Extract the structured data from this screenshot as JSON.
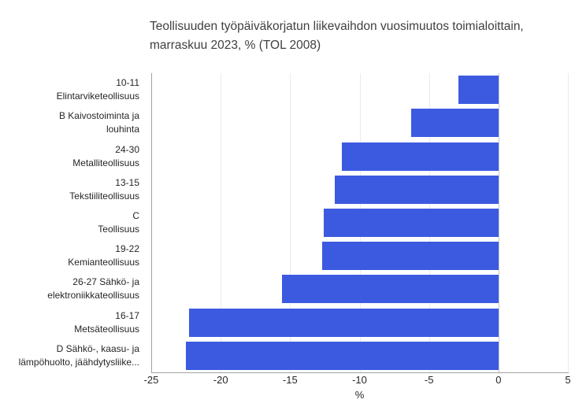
{
  "title": {
    "lines": [
      "Teollisuuden työpäiväkorjatun liikevaihdon vuosimuutos toimialoittain,",
      "marraskuu 2023, % (TOL 2008)"
    ]
  },
  "chart_data": {
    "type": "bar",
    "orientation": "horizontal",
    "title": "Teollisuuden työpäiväkorjatun liikevaihdon vuosimuutos toimialoittain, marraskuu 2023, % (TOL 2008)",
    "categories": [
      "10-11\nElintarviketeollisuus",
      "B Kaivostoiminta ja\nlouhinta",
      "24-30\nMetalliteollisuus",
      "13-15\nTekstiiliteollisuus",
      "C\nTeollisuus",
      "19-22\nKemianteollisuus",
      "26-27 Sähkö- ja\nelektroniikkateollisuus",
      "16-17\nMetsäteollisuus",
      "D Sähkö-, kaasu- ja\nlämpöhuolto, jäähdytysliike..."
    ],
    "values": [
      -2.9,
      -6.3,
      -11.3,
      -11.8,
      -12.6,
      -12.7,
      -15.6,
      -22.3,
      -22.5
    ],
    "xlabel": "%",
    "xlim": [
      -25,
      5
    ],
    "xticks": [
      -25,
      -20,
      -15,
      -10,
      -5,
      0,
      5
    ],
    "grid": true,
    "legend": false,
    "colors": {
      "bar": "#3c5ae0",
      "gridline": "#ebebeb",
      "zero_line": "#c9c9c9",
      "axis_line": "#a2a2a2",
      "title_text": "#404040",
      "label_text": "#262626",
      "background": "#ffffff"
    }
  }
}
